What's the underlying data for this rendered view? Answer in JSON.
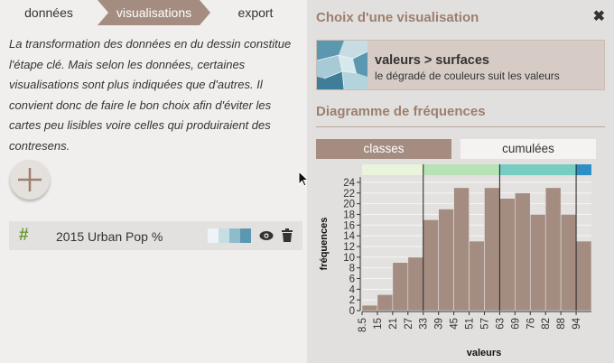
{
  "tabs": [
    {
      "label": "données",
      "active": false
    },
    {
      "label": "visualisations",
      "active": true
    },
    {
      "label": "export",
      "active": false
    }
  ],
  "left": {
    "intro": "La transformation des données en du dessin constitue l'étape clé. Mais selon les données, certaines visualisations sont plus indiquées que d'autres. Il convient donc de faire le bon choix afin d'éviter les cartes peu lisibles voire celles qui produiraient des contresens.",
    "layer": {
      "hash": "#",
      "name": "2015 Urban Pop %",
      "swatches": [
        "#eef4f5",
        "#c7dde3",
        "#8fbccb",
        "#5b98b0"
      ]
    }
  },
  "panel": {
    "title": "Choix d'une visualisation",
    "close": "✖",
    "viz": {
      "name": "valeurs > surfaces",
      "description": "le dégradé de couleurs suit les valeurs"
    },
    "freq_title": "Diagramme de fréquences",
    "toggle": {
      "classes": "classes",
      "cumulees": "cumulées",
      "active": "classes"
    }
  },
  "chart_data": {
    "type": "bar",
    "xlabel": "valeurs",
    "ylabel": "fréquences",
    "categories": [
      "8.5",
      "15",
      "21",
      "27",
      "33",
      "39",
      "45",
      "51",
      "57",
      "63",
      "69",
      "76",
      "82",
      "88",
      "94"
    ],
    "values": [
      1,
      3,
      9,
      10,
      17,
      19,
      23,
      13,
      23,
      21,
      22,
      18,
      23,
      18,
      13
    ],
    "y_ticks": [
      0,
      2,
      4,
      6,
      8,
      10,
      12,
      14,
      16,
      18,
      20,
      22,
      24
    ],
    "ylim": [
      0,
      25
    ],
    "bar_color": "#a48c80",
    "class_breaks_after_bin": [
      3,
      8,
      13
    ],
    "class_colors": [
      "#eaf4dc",
      "#b7e2b6",
      "#78cdc2",
      "#2c8fc5"
    ]
  }
}
